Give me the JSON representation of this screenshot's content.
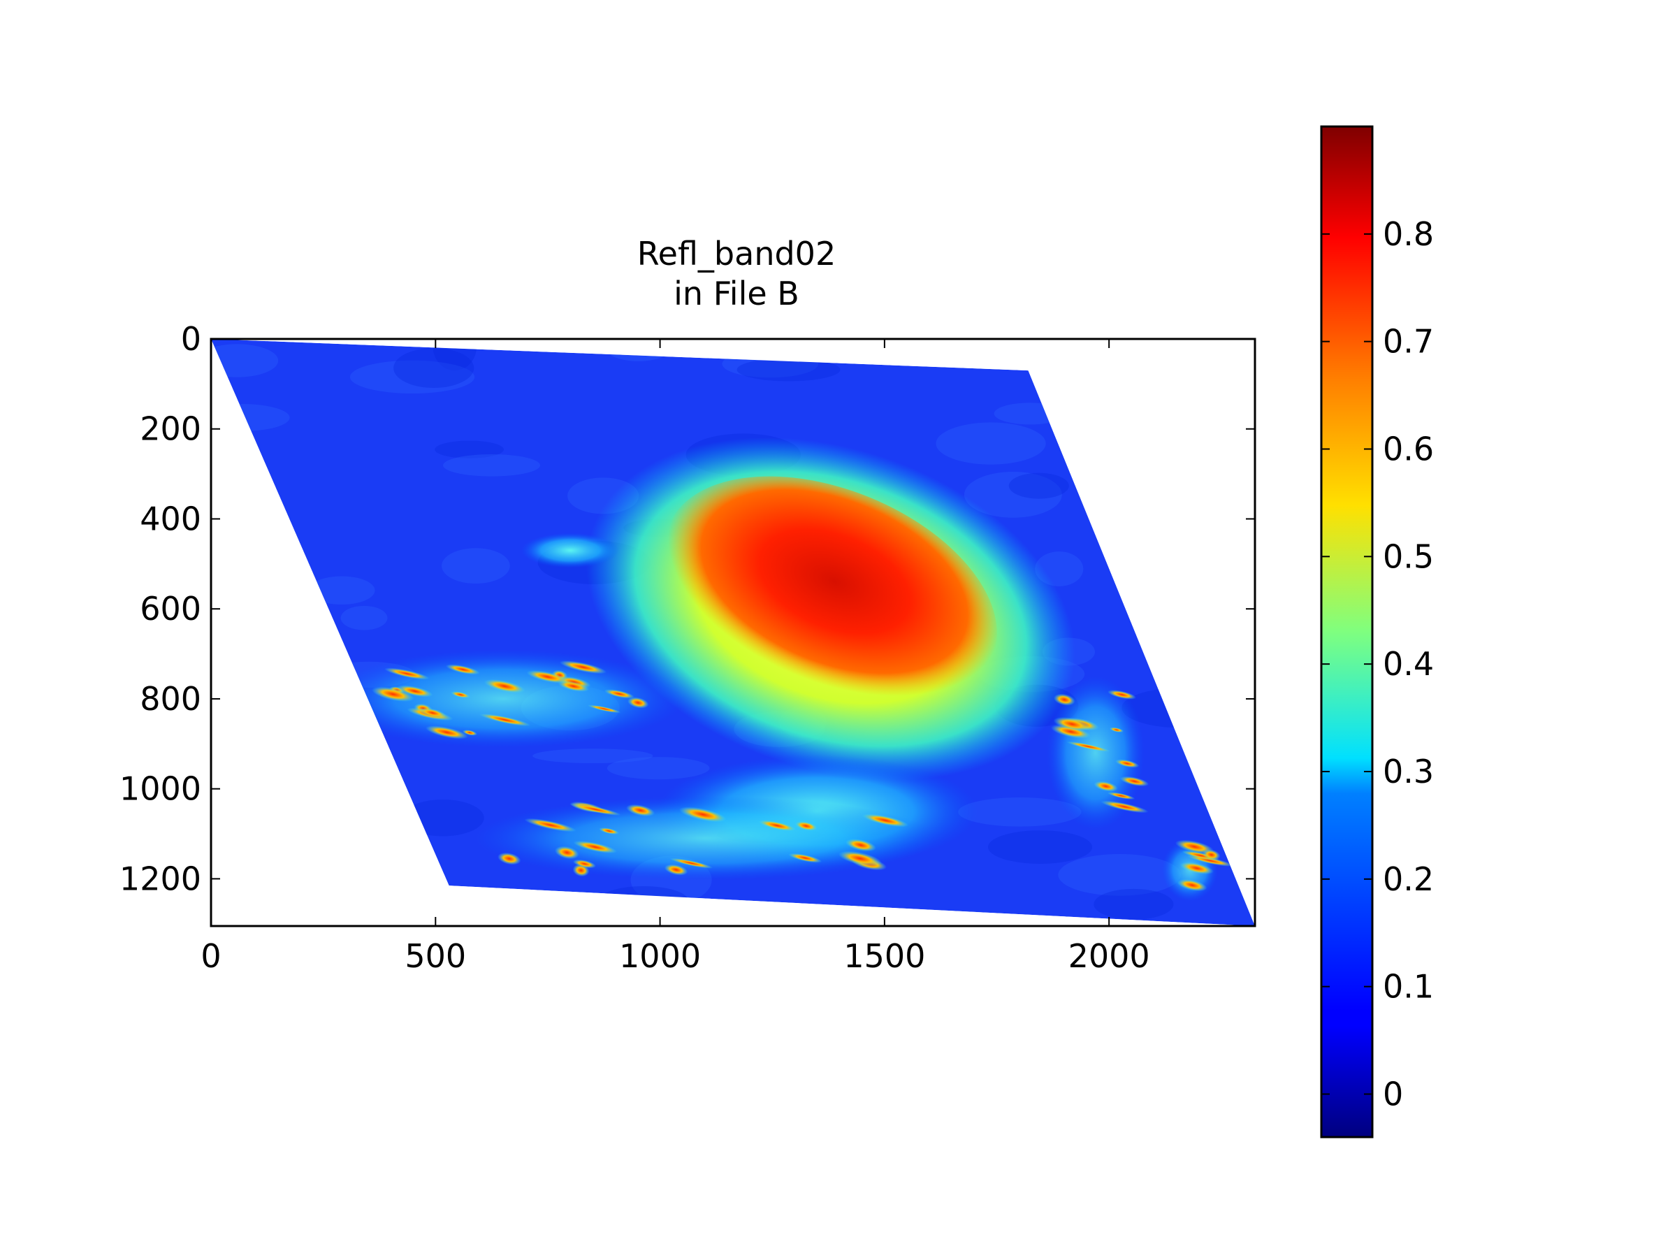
{
  "chart_data": {
    "type": "heatmap",
    "title": "Refl_band02",
    "subtitle": "in File B",
    "xlabel": "",
    "ylabel": "",
    "xlim": [
      0,
      2325
    ],
    "ylim": [
      1305,
      0
    ],
    "x_ticks": [
      "0",
      "500",
      "1000",
      "1500",
      "2000"
    ],
    "x_tick_values": [
      0,
      500,
      1000,
      1500,
      2000
    ],
    "y_ticks": [
      "0",
      "200",
      "400",
      "600",
      "800",
      "1000",
      "1200"
    ],
    "y_tick_values": [
      0,
      200,
      400,
      600,
      800,
      1000,
      1200
    ],
    "colormap": "jet",
    "colorbar": {
      "vmin": -0.04,
      "vmax": 0.9,
      "ticks": [
        "0",
        "0.1",
        "0.2",
        "0.3",
        "0.4",
        "0.5",
        "0.6",
        "0.7",
        "0.8"
      ],
      "tick_values": [
        0,
        0.1,
        0.2,
        0.3,
        0.4,
        0.5,
        0.6,
        0.7,
        0.8
      ]
    },
    "swath_outline": [
      [
        0,
        0
      ],
      [
        1820,
        70
      ],
      [
        2325,
        1305
      ],
      [
        530,
        1215
      ]
    ],
    "features": [
      {
        "name": "central bright cloud mass",
        "x": 1380,
        "y": 560,
        "value": 0.82
      },
      {
        "name": "cloud halo",
        "x": 1380,
        "y": 600,
        "value": 0.6
      },
      {
        "name": "western cloud streaks",
        "x": 650,
        "y": 800,
        "value": 0.7
      },
      {
        "name": "eastern cloud cluster",
        "x": 1970,
        "y": 920,
        "value": 0.55
      },
      {
        "name": "southern cloud streaks",
        "x": 1100,
        "y": 1110,
        "value": 0.6
      },
      {
        "name": "southeastern cloud patch",
        "x": 2180,
        "y": 1180,
        "value": 0.6
      }
    ],
    "background_value": 0.08,
    "grid": false
  }
}
